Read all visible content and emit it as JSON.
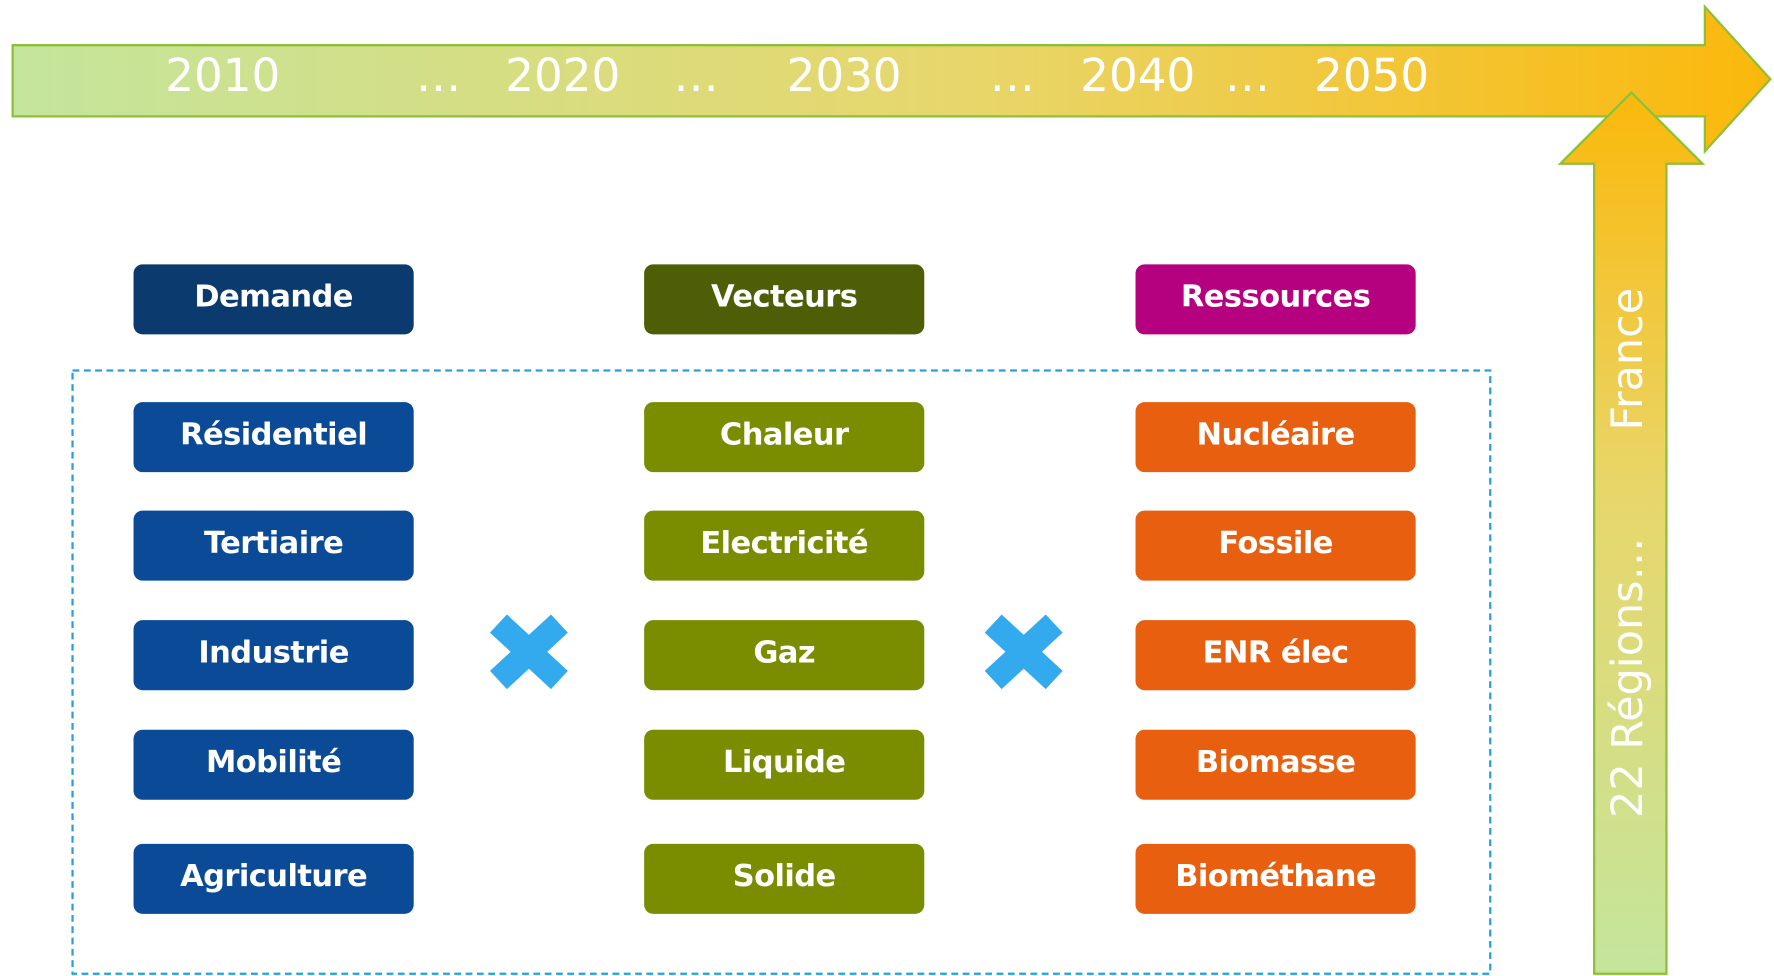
{
  "timeline": {
    "labels": [
      "2010",
      "…",
      "2020",
      "…",
      "2030",
      "…",
      "2040",
      "…",
      "2050"
    ]
  },
  "scope": {
    "labels": [
      "France",
      "22 Régions…"
    ]
  },
  "columns": [
    {
      "header": "Demande",
      "items": [
        "Résidentiel",
        "Tertiaire",
        "Industrie",
        "Mobilité",
        "Agriculture"
      ]
    },
    {
      "header": "Vecteurs",
      "items": [
        "Chaleur",
        "Electricité",
        "Gaz",
        "Liquide",
        "Solide"
      ]
    },
    {
      "header": "Ressources",
      "items": [
        "Nucléaire",
        "Fossile",
        "ENR élec",
        "Biomasse",
        "Biométhane"
      ]
    }
  ]
}
